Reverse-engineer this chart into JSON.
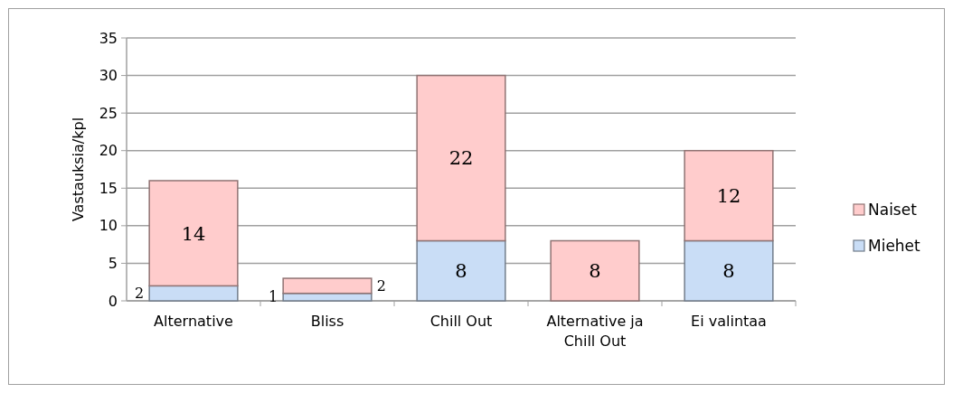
{
  "chart_data": {
    "type": "bar",
    "stacked": true,
    "ylabel": "Vastauksia/kpl",
    "categories": [
      "Alternative",
      "Bliss",
      "Chill Out",
      "Alternative ja Chill Out",
      "Ei valintaa"
    ],
    "series": [
      {
        "name": "Miehet",
        "color": "#c9ddf6",
        "values": [
          2,
          1,
          8,
          0,
          8
        ],
        "value_labels": [
          "2",
          "1",
          "8",
          null,
          "8"
        ]
      },
      {
        "name": "Naiset",
        "color": "#ffcccc",
        "values": [
          14,
          2,
          22,
          8,
          12
        ],
        "value_labels": [
          "14",
          "2",
          "22",
          "8",
          "12"
        ]
      }
    ],
    "ylim": [
      0,
      35
    ],
    "yticks": [
      0,
      5,
      10,
      15,
      20,
      25,
      30,
      35
    ],
    "grid": "y",
    "legend": "right"
  }
}
